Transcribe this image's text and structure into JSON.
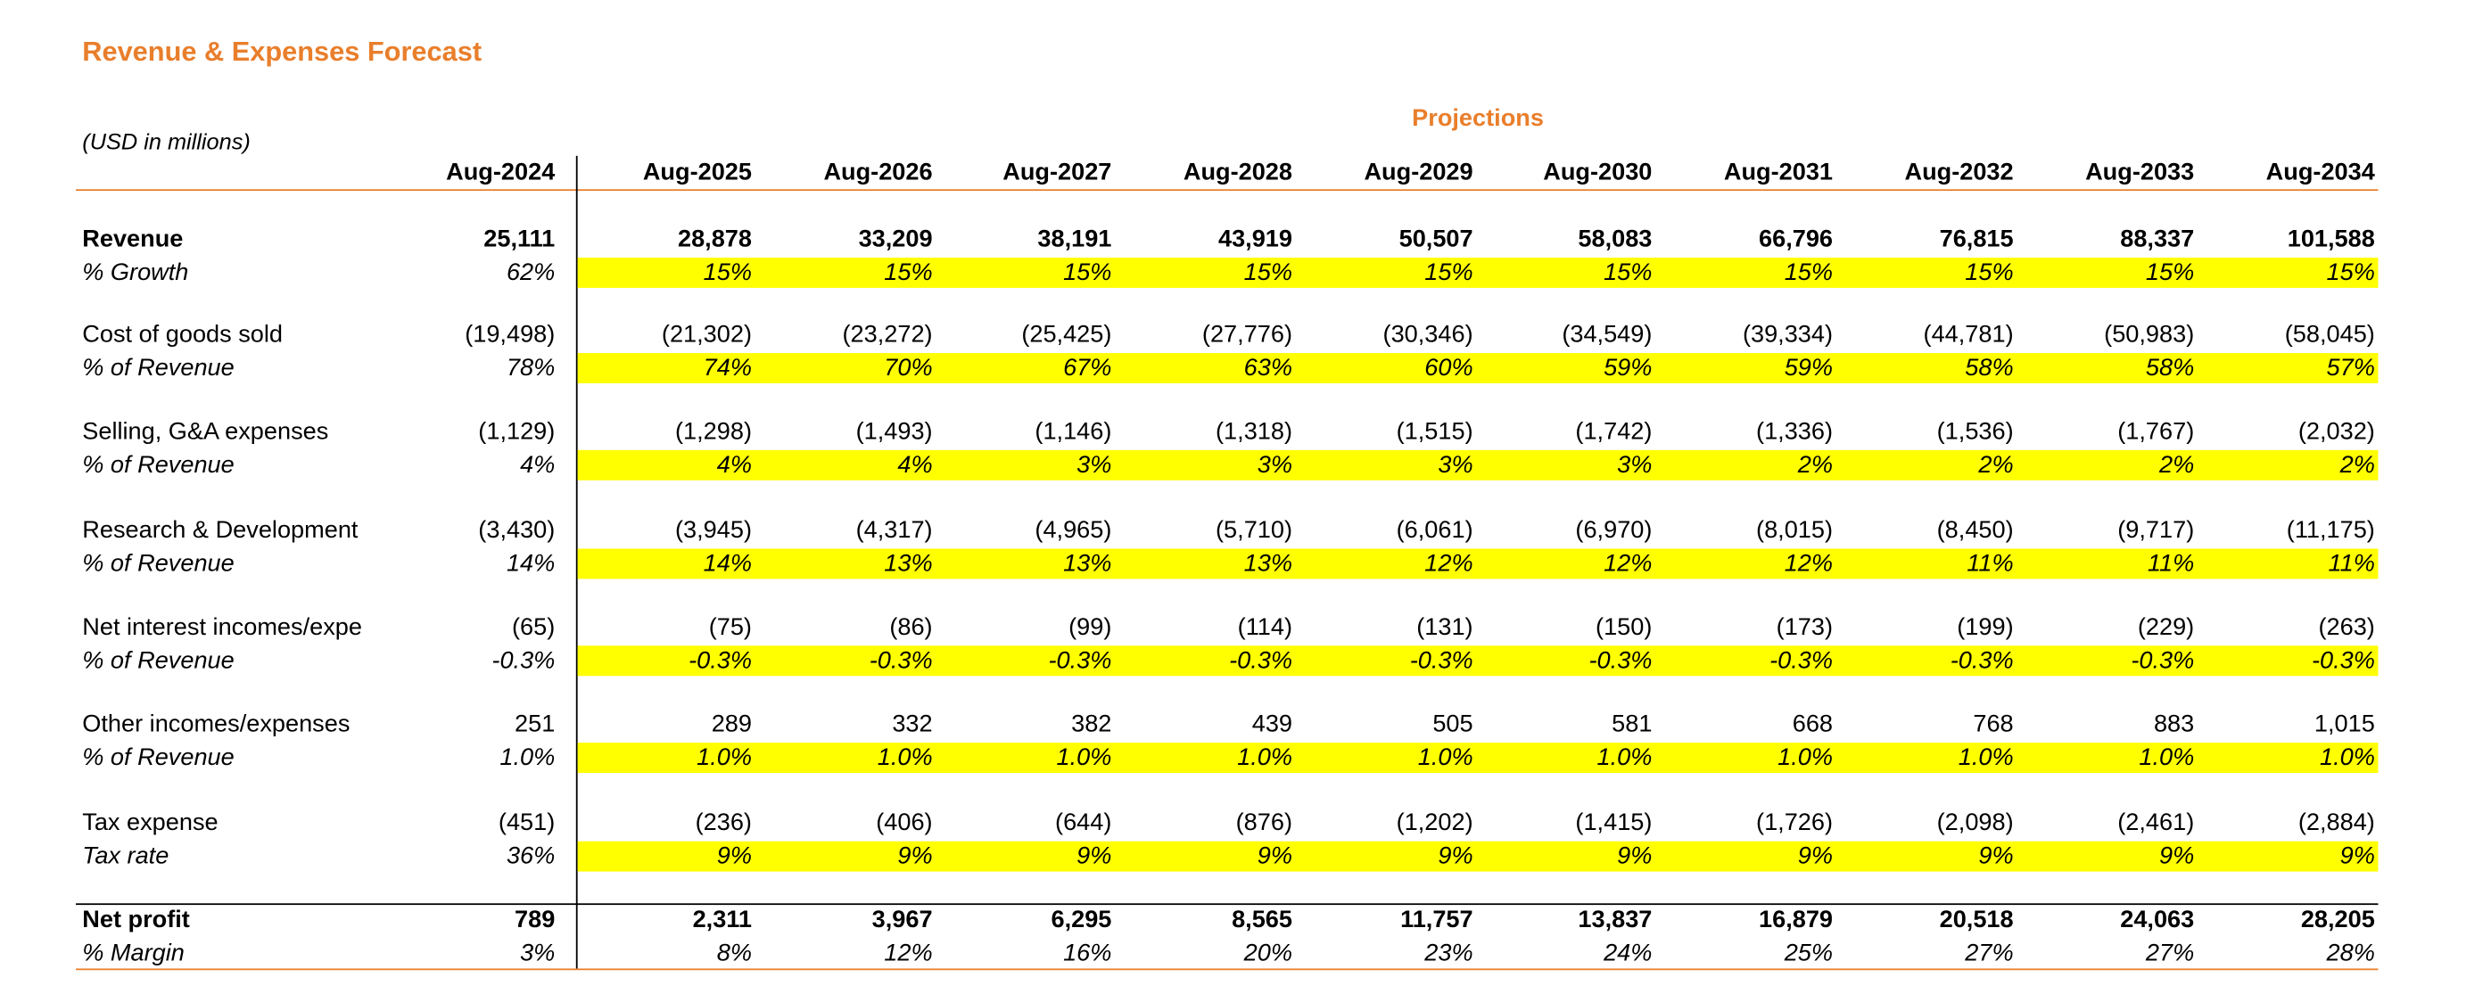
{
  "header": {
    "title": "Revenue & Expenses Forecast",
    "units": "(USD in millions)",
    "projections": "Projections"
  },
  "table": {
    "columns": [
      "Aug-2024",
      "Aug-2025",
      "Aug-2026",
      "Aug-2027",
      "Aug-2028",
      "Aug-2029",
      "Aug-2030",
      "Aug-2031",
      "Aug-2032",
      "Aug-2033",
      "Aug-2034"
    ],
    "groups": [
      {
        "main": {
          "label": "Revenue",
          "values": [
            "25,111",
            "28,878",
            "33,209",
            "38,191",
            "43,919",
            "50,507",
            "58,083",
            "66,796",
            "76,815",
            "88,337",
            "101,588"
          ]
        },
        "ratio": {
          "label": "% Growth",
          "values": [
            "62%",
            "15%",
            "15%",
            "15%",
            "15%",
            "15%",
            "15%",
            "15%",
            "15%",
            "15%",
            "15%"
          ]
        }
      },
      {
        "main": {
          "label": "Cost of goods sold",
          "values": [
            "(19,498)",
            "(21,302)",
            "(23,272)",
            "(25,425)",
            "(27,776)",
            "(30,346)",
            "(34,549)",
            "(39,334)",
            "(44,781)",
            "(50,983)",
            "(58,045)"
          ]
        },
        "ratio": {
          "label": "% of Revenue",
          "values": [
            "78%",
            "74%",
            "70%",
            "67%",
            "63%",
            "60%",
            "59%",
            "59%",
            "58%",
            "58%",
            "57%"
          ]
        }
      },
      {
        "main": {
          "label": "Selling, G&A expenses",
          "values": [
            "(1,129)",
            "(1,298)",
            "(1,493)",
            "(1,146)",
            "(1,318)",
            "(1,515)",
            "(1,742)",
            "(1,336)",
            "(1,536)",
            "(1,767)",
            "(2,032)"
          ]
        },
        "ratio": {
          "label": "% of Revenue",
          "values": [
            "4%",
            "4%",
            "4%",
            "3%",
            "3%",
            "3%",
            "3%",
            "2%",
            "2%",
            "2%",
            "2%"
          ]
        }
      },
      {
        "main": {
          "label": "Research & Development",
          "values": [
            "(3,430)",
            "(3,945)",
            "(4,317)",
            "(4,965)",
            "(5,710)",
            "(6,061)",
            "(6,970)",
            "(8,015)",
            "(8,450)",
            "(9,717)",
            "(11,175)"
          ]
        },
        "ratio": {
          "label": "% of Revenue",
          "values": [
            "14%",
            "14%",
            "13%",
            "13%",
            "13%",
            "12%",
            "12%",
            "12%",
            "11%",
            "11%",
            "11%"
          ]
        }
      },
      {
        "main": {
          "label": "Net interest incomes/expe",
          "values": [
            "(65)",
            "(75)",
            "(86)",
            "(99)",
            "(114)",
            "(131)",
            "(150)",
            "(173)",
            "(199)",
            "(229)",
            "(263)"
          ]
        },
        "ratio": {
          "label": "% of Revenue",
          "values": [
            "-0.3%",
            "-0.3%",
            "-0.3%",
            "-0.3%",
            "-0.3%",
            "-0.3%",
            "-0.3%",
            "-0.3%",
            "-0.3%",
            "-0.3%",
            "-0.3%"
          ]
        }
      },
      {
        "main": {
          "label": "Other incomes/expenses",
          "values": [
            "251",
            "289",
            "332",
            "382",
            "439",
            "505",
            "581",
            "668",
            "768",
            "883",
            "1,015"
          ]
        },
        "ratio": {
          "label": "% of Revenue",
          "values": [
            "1.0%",
            "1.0%",
            "1.0%",
            "1.0%",
            "1.0%",
            "1.0%",
            "1.0%",
            "1.0%",
            "1.0%",
            "1.0%",
            "1.0%"
          ]
        }
      },
      {
        "main": {
          "label": "Tax expense",
          "values": [
            "(451)",
            "(236)",
            "(406)",
            "(644)",
            "(876)",
            "(1,202)",
            "(1,415)",
            "(1,726)",
            "(2,098)",
            "(2,461)",
            "(2,884)"
          ]
        },
        "ratio": {
          "label": "Tax rate",
          "values": [
            "36%",
            "9%",
            "9%",
            "9%",
            "9%",
            "9%",
            "9%",
            "9%",
            "9%",
            "9%",
            "9%"
          ]
        }
      },
      {
        "main": {
          "label": "Net profit",
          "values": [
            "789",
            "2,311",
            "3,967",
            "6,295",
            "8,565",
            "11,757",
            "13,837",
            "16,879",
            "20,518",
            "24,063",
            "28,205"
          ]
        },
        "ratio": {
          "label": "% Margin",
          "values": [
            "3%",
            "8%",
            "12%",
            "16%",
            "20%",
            "23%",
            "24%",
            "25%",
            "27%",
            "27%",
            "28%"
          ]
        }
      }
    ]
  }
}
